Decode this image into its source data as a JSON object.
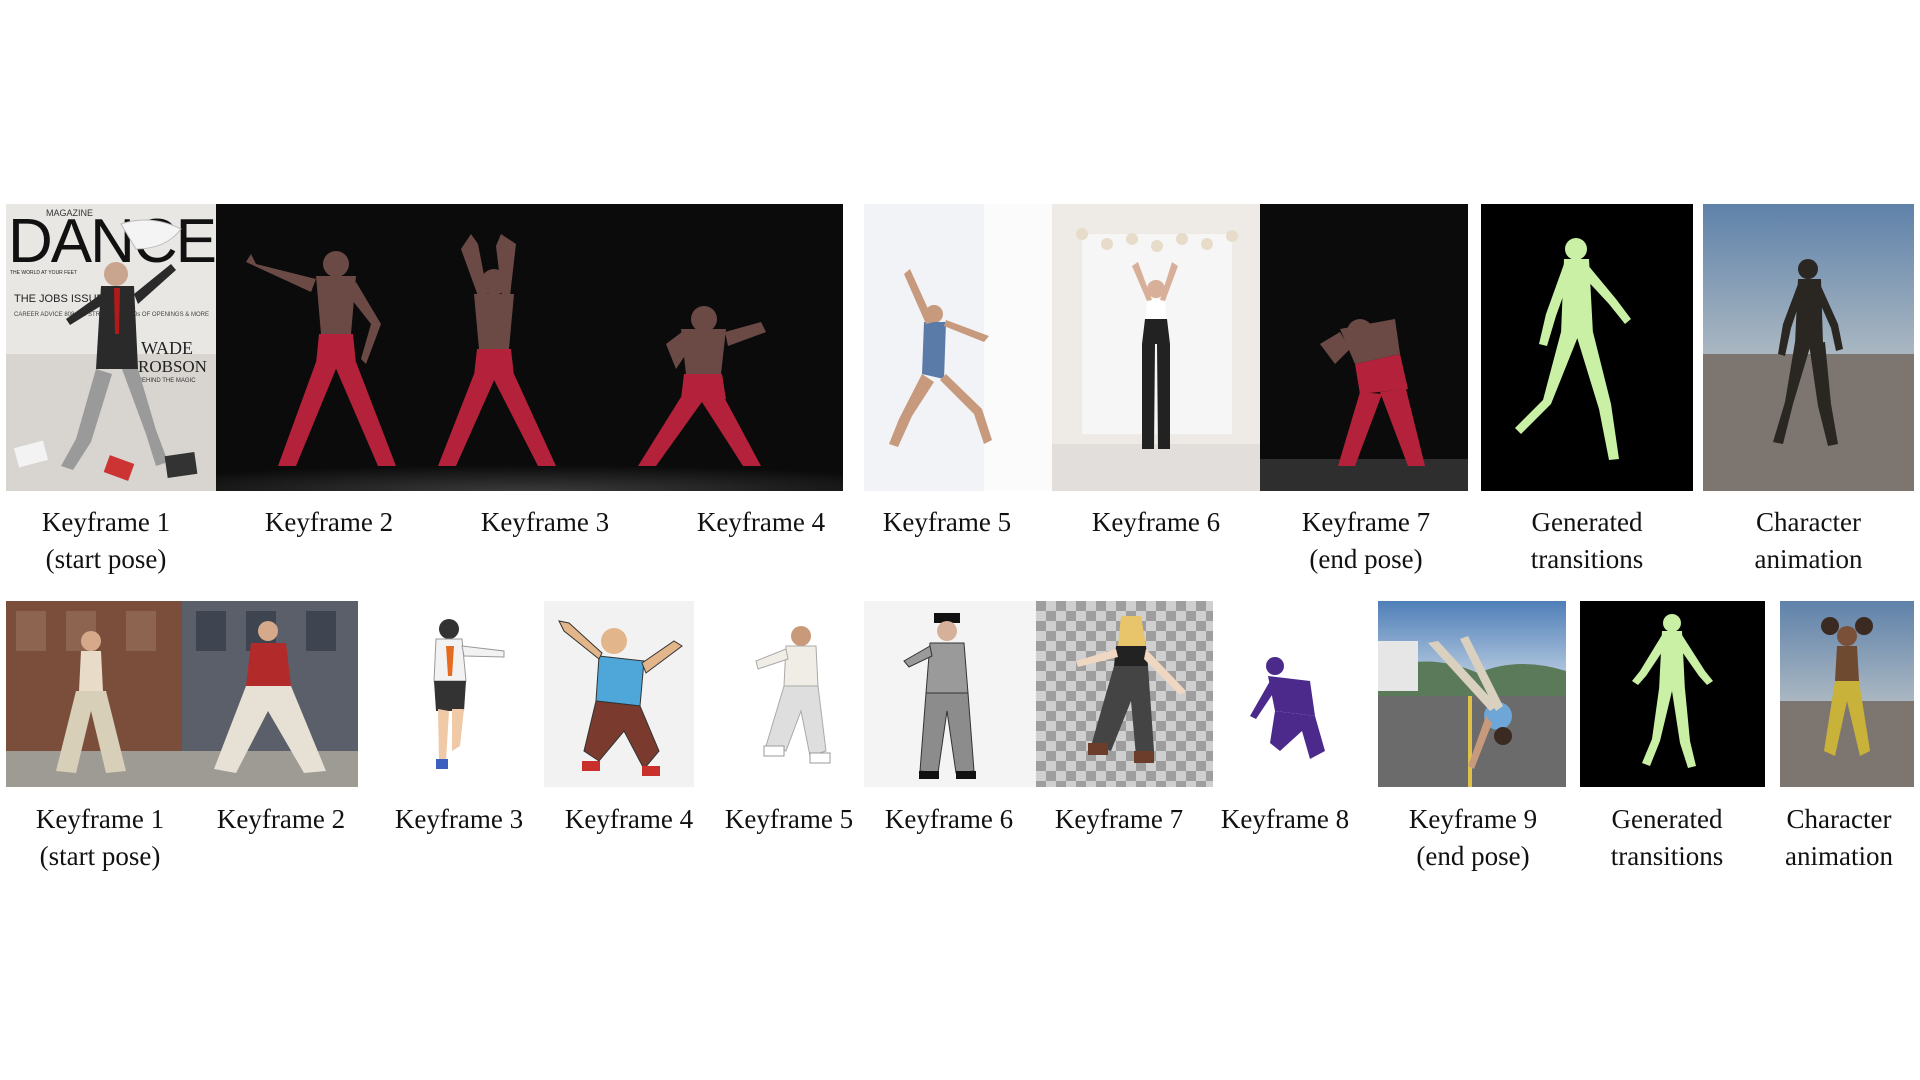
{
  "magazine": {
    "masthead_small": "MAGAZINE",
    "masthead": "DANCE",
    "tagline": "THE WORLD AT YOUR FEET",
    "cover_issue": "THE JOBS ISSUE",
    "cover_lines": "CAREER ADVICE 808 BIG STRATEGIES 100s OF OPENINGS & MORE",
    "cover_name_1": "WADE",
    "cover_name_2": "ROBSON",
    "cover_name_sub": "BEHIND THE MAGIC"
  },
  "row1": {
    "captions": [
      {
        "line1": "Keyframe 1",
        "line2": "(start pose)"
      },
      {
        "line1": "Keyframe 2",
        "line2": ""
      },
      {
        "line1": "Keyframe 3",
        "line2": ""
      },
      {
        "line1": "Keyframe 4",
        "line2": ""
      },
      {
        "line1": "Keyframe 5",
        "line2": ""
      },
      {
        "line1": "Keyframe 6",
        "line2": ""
      },
      {
        "line1": "Keyframe 7",
        "line2": "(end pose)"
      },
      {
        "line1": "Generated",
        "line2": "transitions"
      },
      {
        "line1": "Character",
        "line2": "animation"
      }
    ]
  },
  "row2": {
    "captions": [
      {
        "line1": "Keyframe 1",
        "line2": "(start pose)"
      },
      {
        "line1": "Keyframe 2",
        "line2": ""
      },
      {
        "line1": "Keyframe 3",
        "line2": ""
      },
      {
        "line1": "Keyframe 4",
        "line2": ""
      },
      {
        "line1": "Keyframe 5",
        "line2": ""
      },
      {
        "line1": "Keyframe 6",
        "line2": ""
      },
      {
        "line1": "Keyframe 7",
        "line2": ""
      },
      {
        "line1": "Keyframe 8",
        "line2": ""
      },
      {
        "line1": "Keyframe 9",
        "line2": "(end pose)"
      },
      {
        "line1": "Generated",
        "line2": "transitions"
      },
      {
        "line1": "Character",
        "line2": "animation"
      }
    ]
  },
  "colors": {
    "stage_black": "#0b0b0b",
    "dancer_pants": "#b3213a",
    "skin_dark": "#6b4a45",
    "mesh_green": "#c9f0a4",
    "unity_sky": "#6d8fb3",
    "unity_ground": "#7d7670"
  }
}
